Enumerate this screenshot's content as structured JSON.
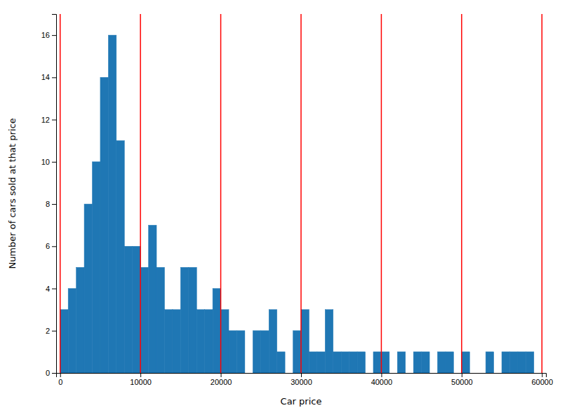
{
  "chart_data": {
    "type": "histogram",
    "counts": [
      3,
      4,
      5,
      8,
      10,
      14,
      16,
      11,
      6,
      6,
      5,
      7,
      5,
      3,
      3,
      5,
      5,
      3,
      3,
      4,
      3,
      2,
      2,
      0,
      2,
      2,
      3,
      1,
      0,
      2,
      3,
      1,
      1,
      3,
      1,
      1,
      1,
      1,
      0,
      1,
      1,
      0,
      1,
      0,
      1,
      1,
      0,
      1,
      1,
      0,
      1,
      0,
      0,
      1,
      0,
      1,
      1,
      1,
      1,
      0
    ],
    "bins": [
      0,
      1000,
      2000,
      3000,
      4000,
      5000,
      6000,
      7000,
      8000,
      9000,
      10000,
      11000,
      12000,
      13000,
      14000,
      15000,
      16000,
      17000,
      18000,
      19000,
      20000,
      21000,
      22000,
      23000,
      24000,
      25000,
      26000,
      27000,
      28000,
      29000,
      30000,
      31000,
      32000,
      33000,
      34000,
      35000,
      36000,
      37000,
      38000,
      39000,
      40000,
      41000,
      42000,
      43000,
      44000,
      45000,
      46000,
      47000,
      48000,
      49000,
      50000,
      51000,
      52000,
      53000,
      54000,
      55000,
      56000,
      57000,
      58000,
      59000,
      60000
    ],
    "color": "#1f77b4",
    "vlines": {
      "x": [
        0,
        10000,
        20000,
        30000,
        40000,
        50000,
        60000
      ],
      "color": "red"
    },
    "xlabel": "Car price",
    "ylabel": "Number of cars sold at that price",
    "xlim": [
      -500,
      60500
    ],
    "ylim": [
      0,
      17
    ],
    "xticks": [
      0,
      10000,
      20000,
      30000,
      40000,
      50000,
      60000
    ],
    "yticks": [
      0,
      2,
      4,
      6,
      8,
      10,
      12,
      14,
      16
    ]
  }
}
